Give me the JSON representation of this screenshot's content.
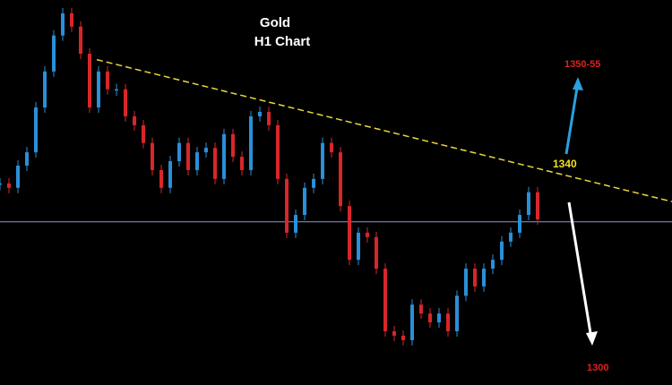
{
  "chart_data": {
    "type": "candlestick",
    "title": "Gold",
    "subtitle": "H1 Chart",
    "xlim": [
      0,
      75
    ],
    "ylim": [
      1296.4,
      1374.5
    ],
    "series": [
      {
        "name": "Gold H1",
        "up_color": "#2a8fd8",
        "down_color": "#d8262a",
        "values": [
          1337.3,
          1336.4,
          1340.9,
          1343.6,
          1352.7,
          1360.0,
          1367.3,
          1371.8,
          1369.1,
          1363.6,
          1352.7,
          1360.0,
          1356.4,
          1356.4,
          1350.9,
          1349.1,
          1345.5,
          1340.0,
          1336.4,
          1341.8,
          1345.5,
          1340.0,
          1343.6,
          1344.5,
          1338.2,
          1347.3,
          1342.7,
          1340.0,
          1350.9,
          1351.8,
          1349.1,
          1338.2,
          1327.3,
          1330.9,
          1336.4,
          1338.2,
          1345.5,
          1343.6,
          1332.7,
          1321.8,
          1327.3,
          1326.4,
          1320.0,
          1307.3,
          1306.4,
          1305.5,
          1312.7,
          1310.9,
          1309.1,
          1310.9,
          1307.3,
          1314.5,
          1320.0,
          1316.4,
          1320.0,
          1321.8,
          1325.5,
          1327.3,
          1330.9,
          1335.5,
          1330.0
        ]
      }
    ],
    "support_level": {
      "value": 1329.5,
      "color": "#8a9ad0"
    },
    "trendline": {
      "x": [
        10.8,
        75
      ],
      "values": [
        1362.4,
        1333.6
      ],
      "color": "#e8d83a"
    },
    "annotations": [
      {
        "text": "1350-55",
        "color": "#e0201e"
      },
      {
        "text": "1340",
        "color": "#f0e020"
      },
      {
        "text": "1300",
        "color": "#e0201e"
      }
    ]
  }
}
